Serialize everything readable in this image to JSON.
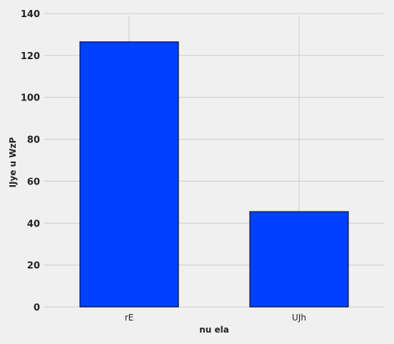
{
  "chart_data": {
    "type": "bar",
    "title": "",
    "xlabel": "nu ela",
    "ylabel": "IJye u WzP",
    "categories": [
      "rE",
      "UJh"
    ],
    "values": [
      126.5,
      45.5
    ],
    "ylim": [
      0,
      140
    ],
    "yticks": [
      0,
      20,
      40,
      60,
      80,
      100,
      120,
      140
    ],
    "grid": true,
    "bar_color": "#0040ff",
    "bar_edge_color": "#000000",
    "background_color": "#f0f0f0",
    "grid_color": "#cbcbcb"
  }
}
